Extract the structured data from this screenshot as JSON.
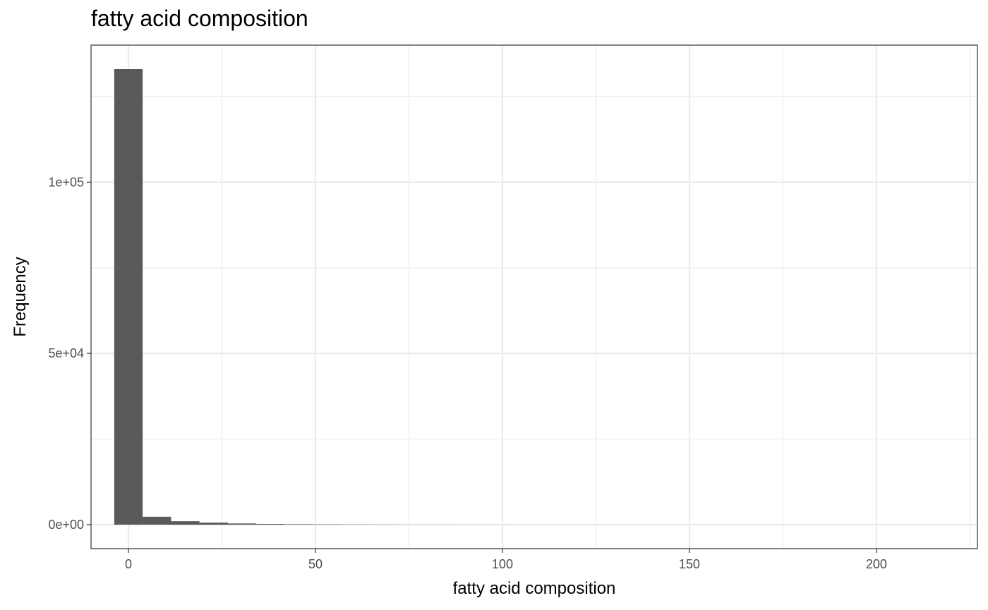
{
  "chart_data": {
    "type": "bar",
    "title": "fatty acid composition",
    "xlabel": "fatty acid composition",
    "ylabel": "Frequency",
    "xlim": [
      -10,
      227
    ],
    "ylim": [
      -7000,
      140000
    ],
    "x_ticks": [
      0,
      50,
      100,
      150,
      200
    ],
    "x_tick_labels": [
      "0",
      "50",
      "100",
      "150",
      "200"
    ],
    "y_ticks": [
      0,
      50000,
      100000
    ],
    "y_tick_labels": [
      "0e+00",
      "5e+04",
      "1e+05"
    ],
    "x_minor_ticks": [
      25,
      75,
      125,
      175,
      225
    ],
    "y_minor_ticks": [
      25000,
      75000,
      125000
    ],
    "bin_width": 7.6,
    "bin_starts": [
      -3.8,
      3.8,
      11.4,
      19.0,
      26.6,
      34.2,
      41.8,
      49.4,
      57.0,
      64.6,
      72.2,
      79.8,
      87.4,
      95.0
    ],
    "values": [
      133000,
      2300,
      1000,
      600,
      350,
      200,
      120,
      80,
      50,
      30,
      20,
      12,
      8,
      5
    ],
    "grid": true,
    "bar_color": "#595959",
    "grid_color": "#ebebeb",
    "panel_border_color": "#333333"
  }
}
